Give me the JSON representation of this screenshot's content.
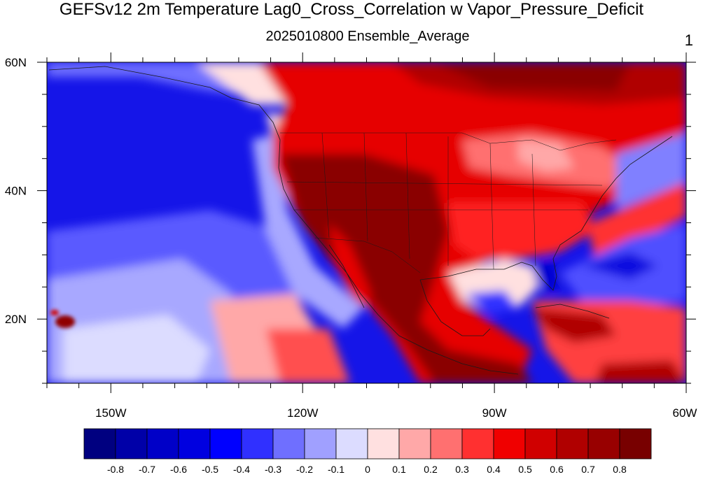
{
  "title": "GEFSv12 2m Temperature Lag0_Cross_Correlation w Vapor_Pressure_Deficit",
  "subtitle": "2025010800 Ensemble_Average",
  "panel_number": "1",
  "map": {
    "lon_range": [
      -160,
      -60
    ],
    "lat_range": [
      10,
      60
    ],
    "lon_ticks": [
      {
        "value": -150,
        "label": "150W"
      },
      {
        "value": -120,
        "label": "120W"
      },
      {
        "value": -90,
        "label": "90W"
      },
      {
        "value": -60,
        "label": "60W"
      }
    ],
    "lat_ticks": [
      {
        "value": 60,
        "label": "60N"
      },
      {
        "value": 40,
        "label": "40N"
      },
      {
        "value": 20,
        "label": "20N"
      }
    ]
  },
  "colorbar": {
    "labels": [
      "-0.8",
      "-0.7",
      "-0.6",
      "-0.5",
      "-0.4",
      "-0.3",
      "-0.2",
      "-0.1",
      "0",
      "0.1",
      "0.2",
      "0.3",
      "0.4",
      "0.5",
      "0.6",
      "0.7",
      "0.8"
    ],
    "colors": [
      "#000080",
      "#0000a8",
      "#0000c8",
      "#0000e0",
      "#0000ff",
      "#3030ff",
      "#6f6fff",
      "#a0a0ff",
      "#dcdcff",
      "#ffe0e0",
      "#ffa8a8",
      "#ff7070",
      "#ff3030",
      "#f00000",
      "#d00000",
      "#b00000",
      "#980000",
      "#780000"
    ]
  }
}
